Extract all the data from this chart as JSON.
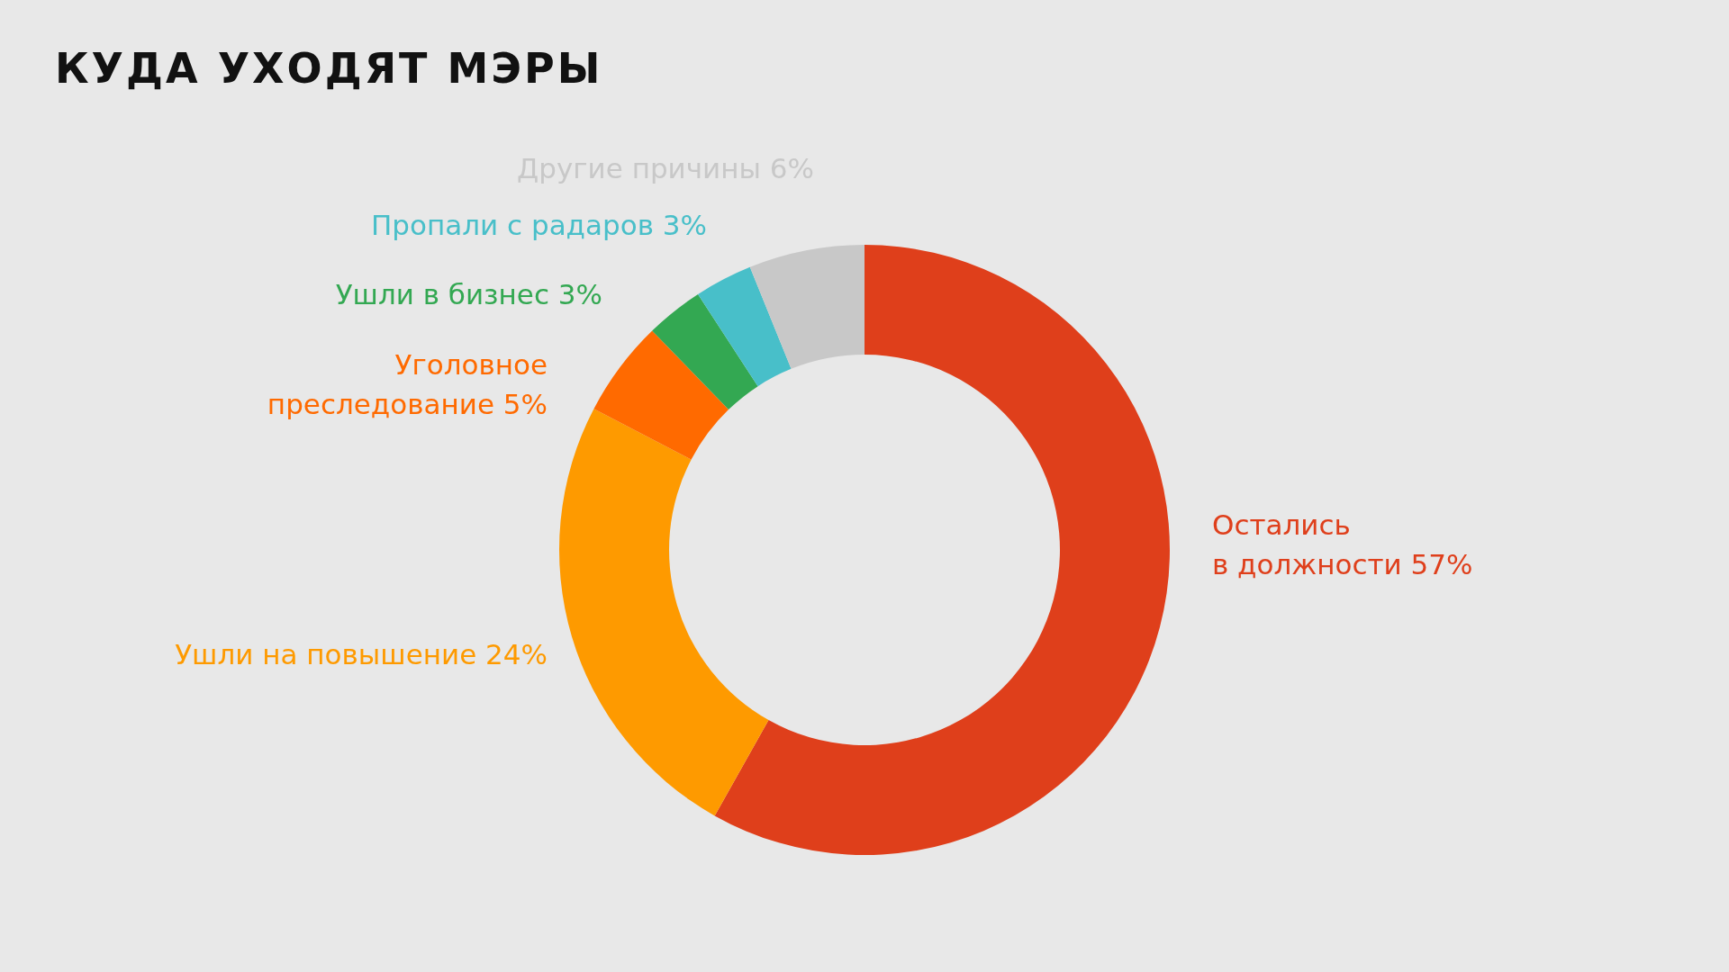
{
  "chart_data": {
    "type": "donut",
    "title": "КУДА УХОДЯТ МЭРЫ",
    "categories": [
      "Остались в должности",
      "Ушли на повышение",
      "Уголовное преследование",
      "Ушли в бизнес",
      "Пропали с радаров",
      "Другие причины"
    ],
    "values": [
      57,
      24,
      5,
      3,
      3,
      6
    ],
    "value_labels": [
      "57%",
      "24%",
      "5%",
      "3%",
      "3%",
      "6%"
    ],
    "colors": [
      "#df3f1b",
      "#fe9a00",
      "#ff6a00",
      "#33a852",
      "#48bfc9",
      "#c8c8c8"
    ]
  }
}
